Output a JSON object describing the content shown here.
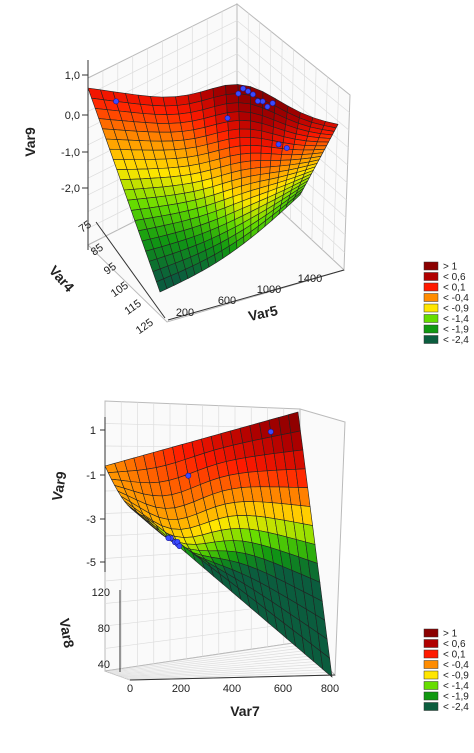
{
  "chart_data": [
    {
      "type": "surface3d",
      "xlabel": "Var5",
      "ylabel": "Var4",
      "zlabel": "Var9",
      "x_ticks": [
        "200",
        "600",
        "1000",
        "1400"
      ],
      "y_ticks": [
        "75",
        "85",
        "95",
        "105",
        "115",
        "125"
      ],
      "z_ticks": [
        "1,0",
        "0,0",
        "-1,0",
        "-2,0"
      ],
      "xlim": [
        0,
        1600
      ],
      "ylim": [
        75,
        125
      ],
      "zlim": [
        -2.5,
        1.2
      ],
      "grid": true,
      "legend_position": "right",
      "legend": [
        {
          "label": "> 1",
          "color": "#8b0000"
        },
        {
          "label": "< 0,6",
          "color": "#b00000"
        },
        {
          "label": "< 0,1",
          "color": "#ff1a00"
        },
        {
          "label": "< -0,4",
          "color": "#ff8c00"
        },
        {
          "label": "< -0,9",
          "color": "#ffe600"
        },
        {
          "label": "< -1,4",
          "color": "#66dd00"
        },
        {
          "label": "< -1,9",
          "color": "#119911"
        },
        {
          "label": "< -2,4",
          "color": "#0b5d3e"
        }
      ],
      "surface_samples": [
        {
          "x": 0,
          "y": 75,
          "z": 0.4
        },
        {
          "x": 1000,
          "y": 75,
          "z": 1.1
        },
        {
          "x": 1600,
          "y": 75,
          "z": 0.8
        },
        {
          "x": 0,
          "y": 100,
          "z": -1.0
        },
        {
          "x": 1000,
          "y": 100,
          "z": -0.3
        },
        {
          "x": 1600,
          "y": 100,
          "z": -0.5
        },
        {
          "x": 0,
          "y": 125,
          "z": -2.4
        },
        {
          "x": 1000,
          "y": 125,
          "z": -1.6
        },
        {
          "x": 1600,
          "y": 125,
          "z": -1.2
        }
      ]
    },
    {
      "type": "surface3d",
      "xlabel": "Var7",
      "ylabel": "Var8",
      "zlabel": "Var9",
      "x_ticks": [
        "0",
        "200",
        "400",
        "600",
        "800"
      ],
      "y_ticks": [
        "40",
        "80",
        "120"
      ],
      "z_ticks": [
        "1",
        "-1",
        "-3",
        "-5"
      ],
      "xlim": [
        0,
        800
      ],
      "ylim": [
        30,
        130
      ],
      "zlim": [
        -6,
        2
      ],
      "grid": true,
      "legend_position": "right",
      "legend": [
        {
          "label": "> 1",
          "color": "#8b0000"
        },
        {
          "label": "< 0,6",
          "color": "#b00000"
        },
        {
          "label": "< 0,1",
          "color": "#ff1a00"
        },
        {
          "label": "< -0,4",
          "color": "#ff8c00"
        },
        {
          "label": "< -0,9",
          "color": "#ffe600"
        },
        {
          "label": "< -1,4",
          "color": "#66dd00"
        },
        {
          "label": "< -1,9",
          "color": "#119911"
        },
        {
          "label": "< -2,4",
          "color": "#0b5d3e"
        }
      ],
      "surface_samples": [
        {
          "x": 0,
          "y": 130,
          "z": -1.0
        },
        {
          "x": 800,
          "y": 130,
          "z": 1.5
        },
        {
          "x": 0,
          "y": 30,
          "z": -1.5
        },
        {
          "x": 800,
          "y": 30,
          "z": -6.0
        }
      ]
    }
  ]
}
